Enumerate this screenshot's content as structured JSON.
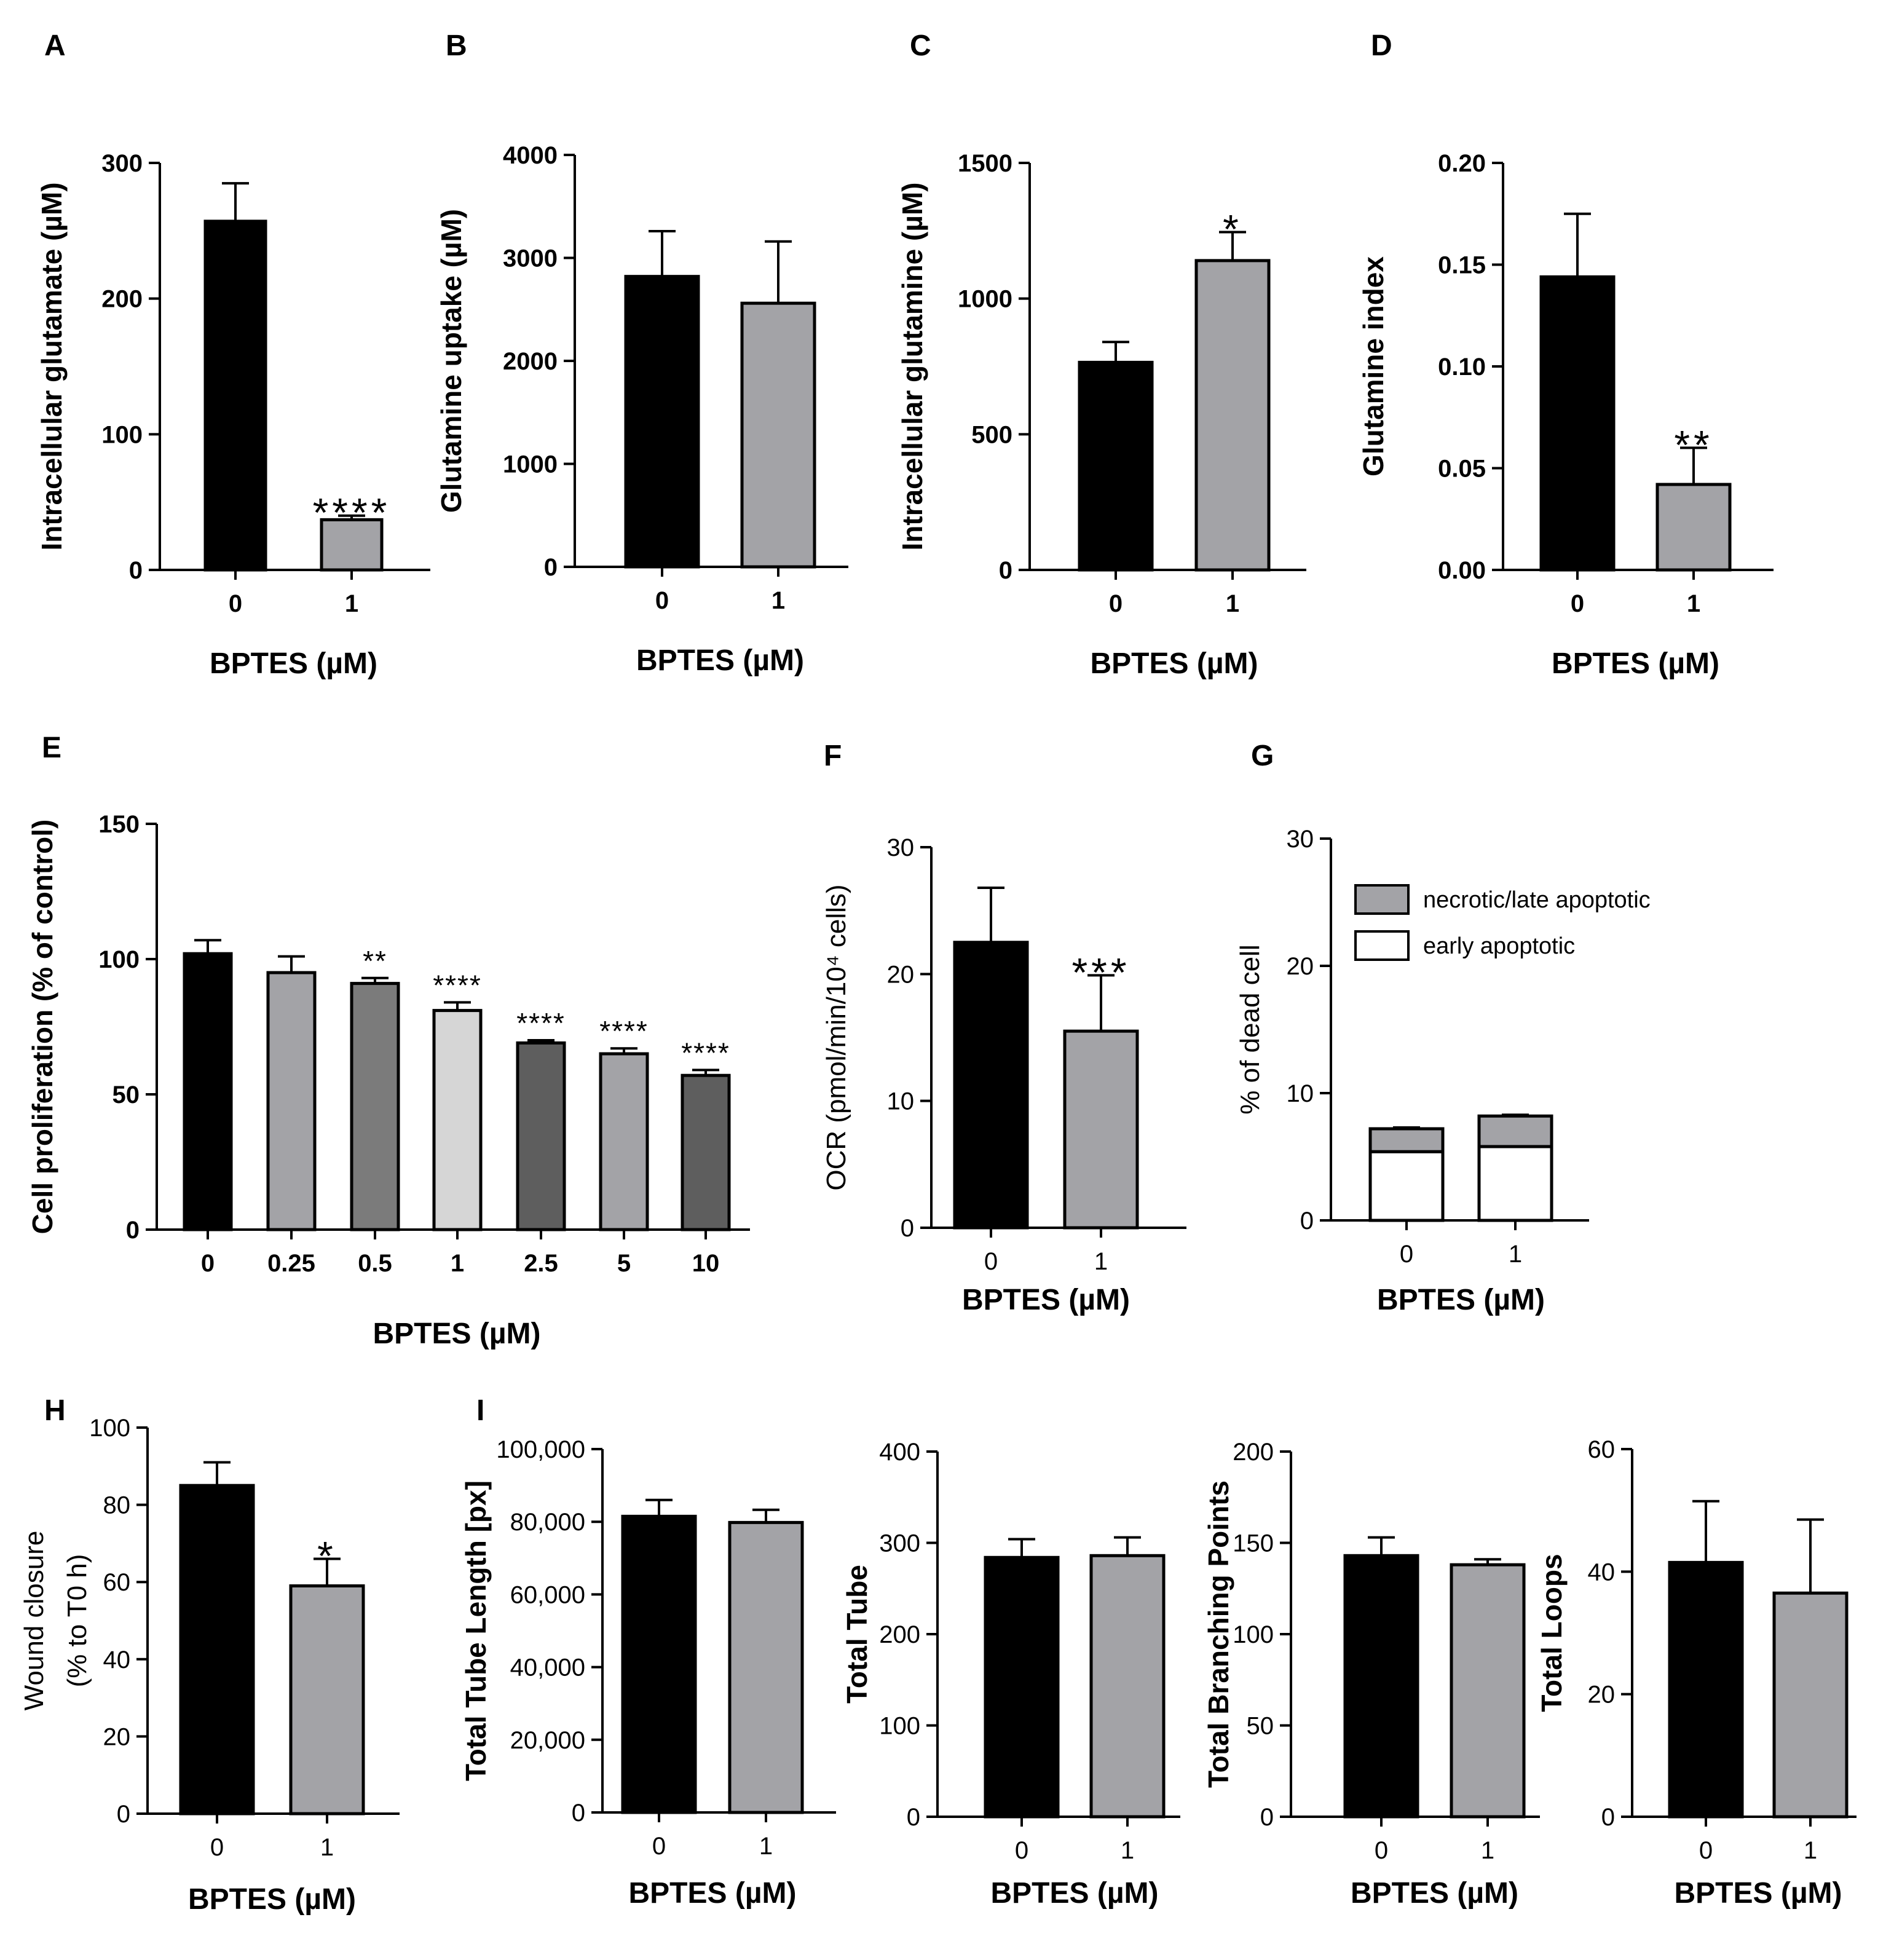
{
  "colors": {
    "black": "#000000",
    "gray": "#a3a3a7",
    "dark_gray": "#5e5e5e",
    "mid_gray": "#7b7b7b",
    "light_gray": "#d6d6d6",
    "white": "#ffffff"
  },
  "chart_data": [
    {
      "id": "A",
      "label": "A",
      "type": "bar",
      "categories": [
        "0",
        "1"
      ],
      "values": [
        257,
        37
      ],
      "errors": [
        28,
        3
      ],
      "ylabel": "Intracellular glutamate  (µM)",
      "xlabel": "BPTES (µM)",
      "ylim": [
        0,
        300
      ],
      "yticks": [
        "0",
        "100",
        "200",
        "300"
      ],
      "annotations": [
        "",
        "****"
      ],
      "colors": [
        "black",
        "gray"
      ]
    },
    {
      "id": "B",
      "label": "B",
      "type": "bar",
      "categories": [
        "0",
        "1"
      ],
      "values": [
        2820,
        2560
      ],
      "errors": [
        440,
        600
      ],
      "ylabel": "Glutamine uptake (µM)",
      "xlabel": "BPTES (µM)",
      "ylim": [
        0,
        4000
      ],
      "yticks": [
        "0",
        "1000",
        "2000",
        "3000",
        "4000"
      ],
      "annotations": [
        "",
        ""
      ],
      "colors": [
        "black",
        "gray"
      ]
    },
    {
      "id": "C",
      "label": "C",
      "type": "bar",
      "categories": [
        "0",
        "1"
      ],
      "values": [
        765,
        1140
      ],
      "errors": [
        75,
        105
      ],
      "ylabel": "Intracellular glutamine  (µM)",
      "xlabel": "BPTES (µM)",
      "ylim": [
        0,
        1500
      ],
      "yticks": [
        "0",
        "500",
        "1000",
        "1500"
      ],
      "annotations": [
        "",
        "*"
      ],
      "colors": [
        "black",
        "gray"
      ]
    },
    {
      "id": "D",
      "label": "D",
      "type": "bar",
      "categories": [
        "0",
        "1"
      ],
      "values": [
        0.144,
        0.042
      ],
      "errors": [
        0.031,
        0.018
      ],
      "ylabel": "Glutamine index",
      "xlabel": "BPTES (µM)",
      "ylim": [
        0,
        0.2
      ],
      "yticks": [
        "0.00",
        "0.05",
        "0.10",
        "0.15",
        "0.20"
      ],
      "annotations": [
        "",
        "**"
      ],
      "colors": [
        "black",
        "gray"
      ]
    },
    {
      "id": "E",
      "label": "E",
      "type": "bar",
      "categories": [
        "0",
        "0.25",
        "0.5",
        "1",
        "2.5",
        "5",
        "10"
      ],
      "values": [
        102,
        95,
        91,
        81,
        69,
        65,
        57
      ],
      "errors": [
        5,
        6,
        2,
        3,
        1,
        2,
        2
      ],
      "ylabel": "Cell proliferation (% of control)",
      "xlabel": "BPTES (µM)",
      "ylim": [
        0,
        150
      ],
      "yticks": [
        "0",
        "50",
        "100",
        "150"
      ],
      "annotations": [
        "",
        "",
        "**",
        "****",
        "****",
        "****",
        "****"
      ],
      "colors": [
        "black",
        "gray",
        "mid_gray",
        "light_gray",
        "dark_gray",
        "gray",
        "dark_gray"
      ]
    },
    {
      "id": "F",
      "label": "F",
      "type": "bar",
      "categories": [
        "0",
        "1"
      ],
      "values": [
        22.5,
        15.5
      ],
      "errors": [
        4.3,
        4.4
      ],
      "ylabel": "OCR (pmol/min/10⁴ cells)",
      "xlabel": "BPTES (µM)",
      "ylim": [
        0,
        30
      ],
      "yticks": [
        "0",
        "10",
        "20",
        "30"
      ],
      "annotations": [
        "",
        "***"
      ],
      "colors": [
        "black",
        "gray"
      ]
    },
    {
      "id": "G",
      "label": "G",
      "type": "stacked-bar",
      "categories": [
        "0",
        "1"
      ],
      "series": [
        {
          "name": "early apoptotic",
          "values": [
            5.4,
            5.8
          ],
          "errors": [
            0.6,
            0.7
          ],
          "color": "white"
        },
        {
          "name": "necrotic/late apoptotic",
          "values": [
            1.8,
            2.4
          ],
          "errors": [
            0.1,
            0.1
          ],
          "color": "gray"
        }
      ],
      "ylabel": "% of dead cell",
      "xlabel": "BPTES (µM)",
      "ylim": [
        0,
        30
      ],
      "yticks": [
        "0",
        "10",
        "20",
        "30"
      ],
      "legend": "top-right"
    },
    {
      "id": "H",
      "label": "H",
      "type": "bar",
      "categories": [
        "0",
        "1"
      ],
      "values": [
        85,
        59
      ],
      "errors": [
        6,
        7
      ],
      "ylabel": [
        "Wound closure",
        "(% to T0 h)"
      ],
      "xlabel": "BPTES (µM)",
      "ylim": [
        0,
        100
      ],
      "yticks": [
        "0",
        "20",
        "40",
        "60",
        "80",
        "100"
      ],
      "annotations": [
        "",
        "*"
      ],
      "colors": [
        "black",
        "gray"
      ]
    },
    {
      "id": "I1",
      "label": "I",
      "type": "bar",
      "categories": [
        "0",
        "1"
      ],
      "values": [
        81500,
        79800
      ],
      "errors": [
        4500,
        3500
      ],
      "ylabel": "Total Tube Length [px]",
      "xlabel": "BPTES (µM)",
      "ylim": [
        0,
        100000
      ],
      "yticks": [
        "0",
        "20,000",
        "40,000",
        "60,000",
        "80,000",
        "100,000"
      ],
      "annotations": [
        "",
        ""
      ],
      "colors": [
        "black",
        "gray"
      ]
    },
    {
      "id": "I2",
      "label": "",
      "type": "bar",
      "categories": [
        "0",
        "1"
      ],
      "values": [
        284,
        286
      ],
      "errors": [
        20,
        20
      ],
      "ylabel": "Total Tube",
      "xlabel": "BPTES (µM)",
      "ylim": [
        0,
        400
      ],
      "yticks": [
        "0",
        "100",
        "200",
        "300",
        "400"
      ],
      "annotations": [
        "",
        ""
      ],
      "colors": [
        "black",
        "gray"
      ]
    },
    {
      "id": "I3",
      "label": "",
      "type": "bar",
      "categories": [
        "0",
        "1"
      ],
      "values": [
        143,
        138
      ],
      "errors": [
        10,
        3
      ],
      "ylabel": "Total Branching Points",
      "xlabel": "BPTES (µM)",
      "ylim": [
        0,
        200
      ],
      "yticks": [
        "0",
        "50",
        "100",
        "150",
        "200"
      ],
      "annotations": [
        "",
        ""
      ],
      "colors": [
        "black",
        "gray"
      ]
    },
    {
      "id": "I4",
      "label": "",
      "type": "bar",
      "categories": [
        "0",
        "1"
      ],
      "values": [
        41.5,
        36.5
      ],
      "errors": [
        10,
        12
      ],
      "ylabel": "Total Loops",
      "xlabel": "BPTES (µM)",
      "ylim": [
        0,
        60
      ],
      "yticks": [
        "0",
        "20",
        "40",
        "60"
      ],
      "annotations": [
        "",
        ""
      ],
      "colors": [
        "black",
        "gray"
      ]
    }
  ]
}
